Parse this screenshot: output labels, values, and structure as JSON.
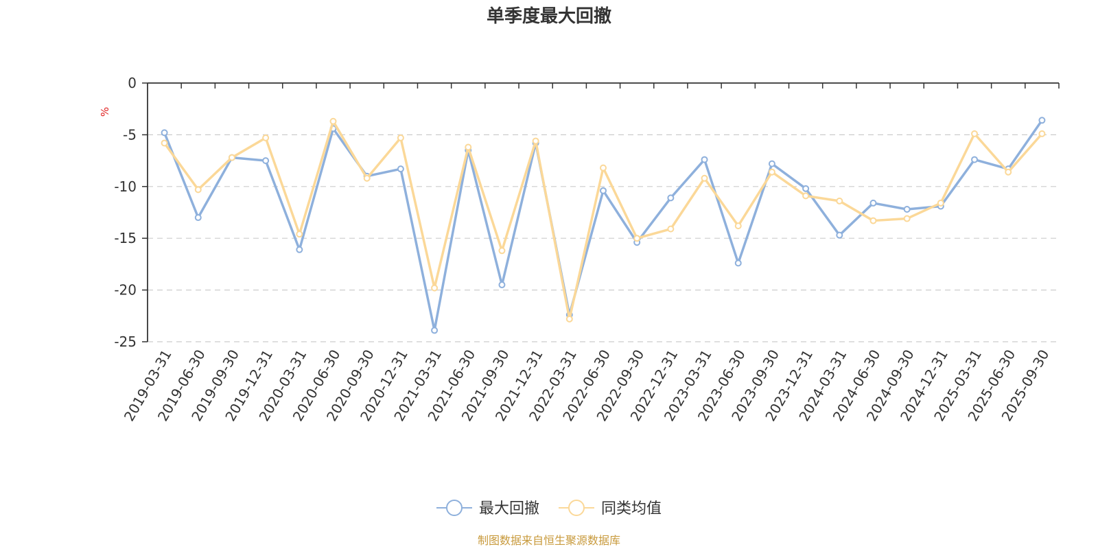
{
  "chart_data": {
    "type": "line",
    "title": "单季度最大回撤",
    "ylabel": "%",
    "ylim": [
      -25,
      0
    ],
    "yticks": [
      "0",
      "-5",
      "-10",
      "-15",
      "-20",
      "-25"
    ],
    "grid": true,
    "legend_position": "bottom",
    "categories": [
      "2019-03-31",
      "2019-06-30",
      "2019-09-30",
      "2019-12-31",
      "2020-03-31",
      "2020-06-30",
      "2020-09-30",
      "2020-12-31",
      "2021-03-31",
      "2021-06-30",
      "2021-09-30",
      "2021-12-31",
      "2022-03-31",
      "2022-06-30",
      "2022-09-30",
      "2022-12-31",
      "2023-03-31",
      "2023-06-30",
      "2023-09-30",
      "2023-12-31",
      "2024-03-31",
      "2024-06-30",
      "2024-09-30",
      "2024-12-31",
      "2025-03-31",
      "2025-06-30",
      "2025-09-30"
    ],
    "series": [
      {
        "name": "最大回撤",
        "color": "#8eb0dc",
        "values": [
          -4.8,
          -13.0,
          -7.2,
          -7.5,
          -16.1,
          -4.4,
          -9.0,
          -8.3,
          -23.9,
          -6.5,
          -19.5,
          -5.8,
          -22.4,
          -10.4,
          -15.4,
          -11.1,
          -7.4,
          -17.4,
          -7.8,
          -10.2,
          -14.7,
          -11.6,
          -12.2,
          -11.9,
          -7.4,
          -8.3,
          -3.6
        ]
      },
      {
        "name": "同类均值",
        "color": "#fbd898",
        "values": [
          -5.8,
          -10.3,
          -7.2,
          -5.3,
          -14.6,
          -3.7,
          -9.2,
          -5.3,
          -19.8,
          -6.2,
          -16.2,
          -5.6,
          -22.8,
          -8.2,
          -15.0,
          -14.1,
          -9.2,
          -13.8,
          -8.6,
          -10.9,
          -11.4,
          -13.3,
          -13.1,
          -11.6,
          -4.9,
          -8.6,
          -4.9
        ]
      }
    ]
  },
  "footer": {
    "source": "制图数据来自恒生聚源数据库"
  }
}
